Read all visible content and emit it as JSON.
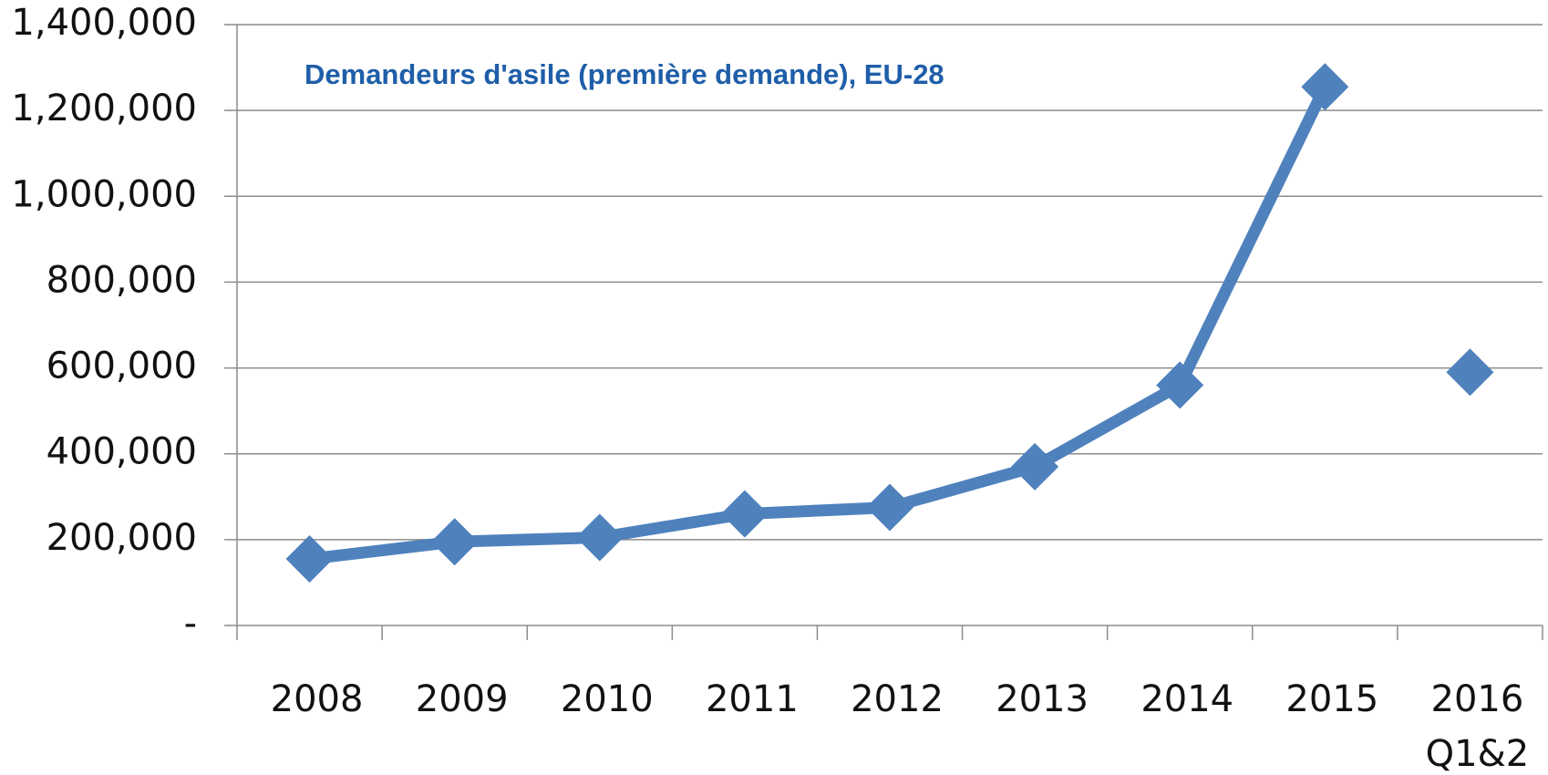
{
  "chart_data": {
    "type": "line",
    "title": "Demandeurs d'asile (première demande), EU-28",
    "categories": [
      "2008",
      "2009",
      "2010",
      "2011",
      "2012",
      "2013",
      "2014",
      "2015",
      "2016\nQ1&2"
    ],
    "series": [
      {
        "color": "#4f81bd",
        "line": true,
        "values": [
          155000,
          195000,
          205000,
          260000,
          275000,
          370000,
          560000,
          1255000,
          null
        ]
      },
      {
        "color": "#4f81bd",
        "line": false,
        "values": [
          null,
          null,
          null,
          null,
          null,
          null,
          null,
          null,
          590000
        ]
      }
    ],
    "ylim": [
      0,
      1400000
    ],
    "yticks": [
      {
        "value": 0,
        "label": "-"
      },
      {
        "value": 200000,
        "label": "200,000"
      },
      {
        "value": 400000,
        "label": "400,000"
      },
      {
        "value": 600000,
        "label": "600,000"
      },
      {
        "value": 800000,
        "label": "800,000"
      },
      {
        "value": 1000000,
        "label": "1,000,000"
      },
      {
        "value": 1200000,
        "label": "1,200,000"
      },
      {
        "value": 1400000,
        "label": "1,400,000"
      }
    ],
    "grid": true
  }
}
